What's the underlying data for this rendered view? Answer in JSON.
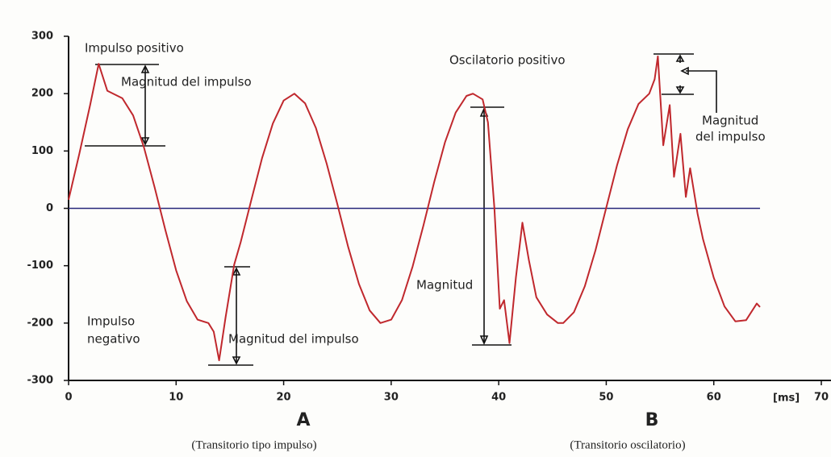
{
  "chart_data": {
    "type": "line",
    "color": "#c0282d",
    "x": [
      0,
      1,
      2,
      2.8,
      3.6,
      5,
      6,
      7,
      8,
      9,
      10,
      11,
      12,
      13,
      13.5,
      14,
      14.6,
      15.4,
      16,
      17,
      18,
      19,
      20,
      21,
      22,
      23,
      24,
      25,
      26,
      27,
      28,
      29,
      30,
      31,
      32,
      33,
      34,
      35,
      36,
      37,
      37.6,
      38.5,
      39,
      39.6,
      40.1,
      40.5,
      41,
      41.6,
      42.2,
      42.8,
      43.5,
      44.5,
      45.5,
      46,
      47,
      48,
      49,
      50,
      51,
      52,
      53,
      54,
      54.5,
      54.8,
      55.3,
      55.9,
      56.3,
      56.9,
      57.4,
      57.8,
      58.5,
      59,
      60,
      61,
      62,
      63,
      64,
      64.3
    ],
    "values": [
      15,
      95,
      180,
      252,
      205,
      192,
      162,
      107,
      37,
      -38,
      -108,
      -162,
      -194,
      -200,
      -215,
      -265,
      -190,
      -98,
      -59,
      15,
      88,
      148,
      188,
      200,
      183,
      140,
      78,
      7,
      -67,
      -132,
      -178,
      -200,
      -194,
      -160,
      -101,
      -30,
      46,
      115,
      167,
      196,
      200,
      190,
      150,
      0,
      -175,
      -160,
      -235,
      -120,
      -25,
      -90,
      -155,
      -185,
      -200,
      -200,
      -181,
      -136,
      -73,
      1,
      75,
      138,
      182,
      200,
      225,
      265,
      110,
      180,
      55,
      130,
      20,
      70,
      -10,
      -54,
      -121,
      -171,
      -197,
      -195,
      -166,
      -172
    ],
    "xlim": [
      0,
      70
    ],
    "ylim": [
      -300,
      300
    ],
    "xticks": [
      0,
      10,
      20,
      30,
      40,
      50,
      60,
      70
    ],
    "yticks": [
      -300,
      -200,
      -100,
      0,
      100,
      200,
      300
    ],
    "x_unit": "[ms]",
    "hlines": [
      {
        "value": 0,
        "color": "#27277a"
      }
    ],
    "annotations": [
      "Impulso positivo",
      "Magnitud del impulso",
      [
        "Impulso",
        "negativo"
      ],
      "Magnitud del impulso",
      "Magnitud",
      "Oscilatorio positivo",
      [
        "Magnitud",
        "del impulso"
      ]
    ],
    "panels": [
      {
        "label": "A",
        "caption": "(Transitorio tipo impulso)"
      },
      {
        "label": "B",
        "caption": "(Transitorio oscilatorio)"
      }
    ]
  }
}
